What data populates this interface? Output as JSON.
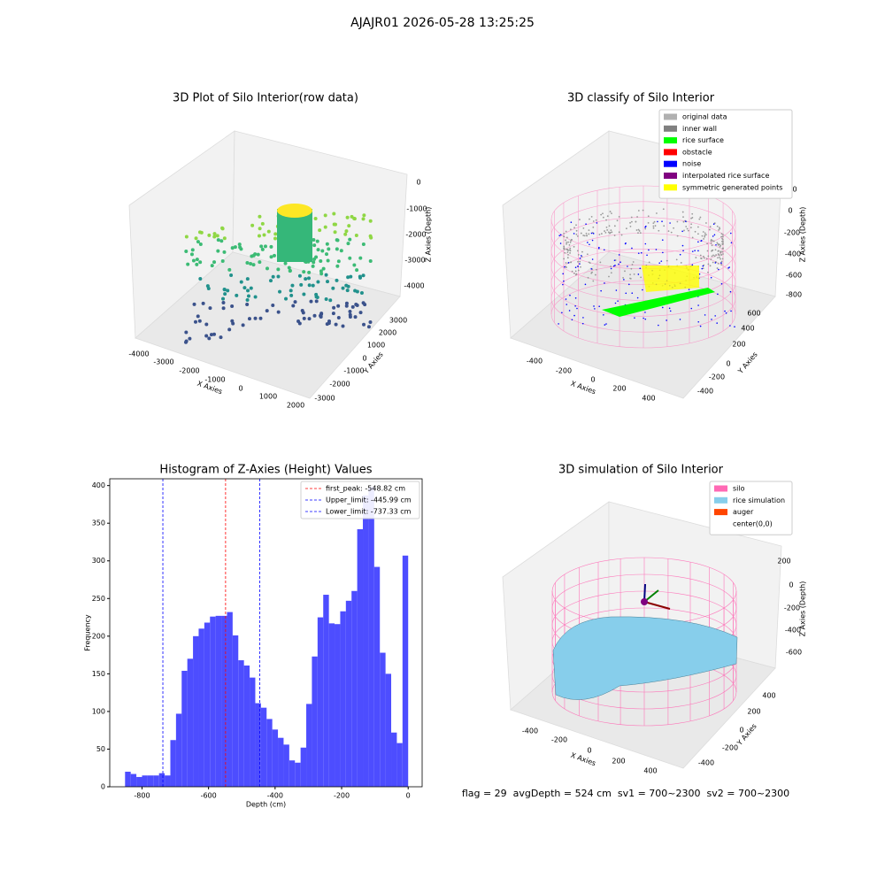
{
  "suptitle": "AJAJR01 2026-05-28 13:25:25",
  "plots3d": [
    {
      "title": "3D Plot of Silo Interior(row data)",
      "xlabel": "X Axies",
      "ylabel": "Y Axies",
      "zlabel": "Z Axies (Depth)",
      "xticks": [
        -4000,
        -3000,
        -2000,
        -1000,
        0,
        1000,
        2000
      ],
      "yticks": [
        -3000,
        -2000,
        -1000,
        0,
        1000,
        2000,
        3000
      ],
      "zticks": [
        0,
        -1000,
        -2000,
        -3000,
        -4000
      ],
      "legend": []
    },
    {
      "title": "3D classify of Silo Interior",
      "xlabel": "X Axies",
      "ylabel": "Y Axies",
      "zlabel": "Z Axies (Depth)",
      "xticks": [
        -400,
        -200,
        0,
        200,
        400
      ],
      "yticks": [
        -400,
        -200,
        0,
        200,
        400,
        600
      ],
      "zticks": [
        200,
        0,
        -200,
        -400,
        -600,
        -800
      ],
      "legend": [
        {
          "name": "original data",
          "color": "#b0b0b0"
        },
        {
          "name": "inner wall",
          "color": "#808080"
        },
        {
          "name": "rice surface",
          "color": "#00ff00"
        },
        {
          "name": "obstacle",
          "color": "#ff0000"
        },
        {
          "name": "noise",
          "color": "#0000ff"
        },
        {
          "name": "interpolated rice surface",
          "color": "#800080"
        },
        {
          "name": "symmetric generated points",
          "color": "#ffff00"
        }
      ]
    },
    {
      "title": "3D simulation of Silo Interior",
      "xlabel": "X Axies",
      "ylabel": "Y Axies",
      "zlabel": "Z Axies (Depth)",
      "xticks": [
        -400,
        -200,
        0,
        200,
        400
      ],
      "yticks": [
        -400,
        -200,
        0,
        200,
        400
      ],
      "zticks": [
        200,
        0,
        -200,
        -400,
        -600
      ],
      "legend": [
        {
          "name": "silo",
          "color": "#ff69b4"
        },
        {
          "name": "rice simulation",
          "color": "#87ceeb"
        },
        {
          "name": "auger",
          "color": "#ff4500"
        },
        {
          "name": "center(0,0)",
          "color": null
        }
      ]
    }
  ],
  "chart_data": {
    "type": "histogram",
    "title": "Histogram of Z-Axies (Height) Values",
    "xlabel": "Depth (cm)",
    "ylabel": "Frequency",
    "color": "#4d4dff",
    "bins": [
      -851,
      -833.98,
      -816.96,
      -799.94,
      -782.92,
      -765.9,
      -748.88,
      -731.86,
      -714.84,
      -697.82,
      -680.8,
      -663.78,
      -646.76,
      -629.74,
      -612.72,
      -595.7,
      -578.68,
      -561.66,
      -544.64,
      -527.62,
      -510.6,
      -493.58,
      -476.56,
      -459.54,
      -442.52,
      -425.5,
      -408.48,
      -391.46,
      -374.44,
      -357.42,
      -340.4,
      -323.38,
      -306.36,
      -289.34,
      -272.32,
      -255.3,
      -238.28,
      -221.26,
      -204.24,
      -187.22,
      -170.2,
      -153.18,
      -136.16,
      -119.14,
      -102.12,
      -85.1,
      -68.08,
      -51.06,
      -34.04,
      -17.02,
      0
    ],
    "values": [
      20,
      17,
      13,
      15,
      15,
      15,
      18,
      15,
      62,
      97,
      154,
      170,
      200,
      210,
      218,
      226,
      227,
      227,
      232,
      201,
      168,
      161,
      145,
      111,
      105,
      90,
      76,
      65,
      56,
      35,
      32,
      52,
      110,
      173,
      225,
      255,
      217,
      216,
      233,
      247,
      260,
      342,
      387,
      398,
      292,
      178,
      150,
      72,
      58,
      307
    ],
    "vlines": [
      {
        "name": "first_peak: -548.82 cm",
        "value": -548.82,
        "color": "#ff0000"
      },
      {
        "name": "Upper_limit: -445.99 cm",
        "value": -445.99,
        "color": "#0000ff"
      },
      {
        "name": "Lower_limit: -737.33 cm",
        "value": -737.33,
        "color": "#0000ff"
      }
    ],
    "xlim": [
      -897,
      42
    ],
    "ylim": [
      0,
      409
    ],
    "xticks": [
      -800,
      -600,
      -400,
      -200,
      0
    ],
    "yticks": [
      0,
      50,
      100,
      150,
      200,
      250,
      300,
      350,
      400
    ]
  },
  "footer": "flag = 29  avgDepth = 524 cm  sv1 = 700~2300  sv2 = 700~2300"
}
